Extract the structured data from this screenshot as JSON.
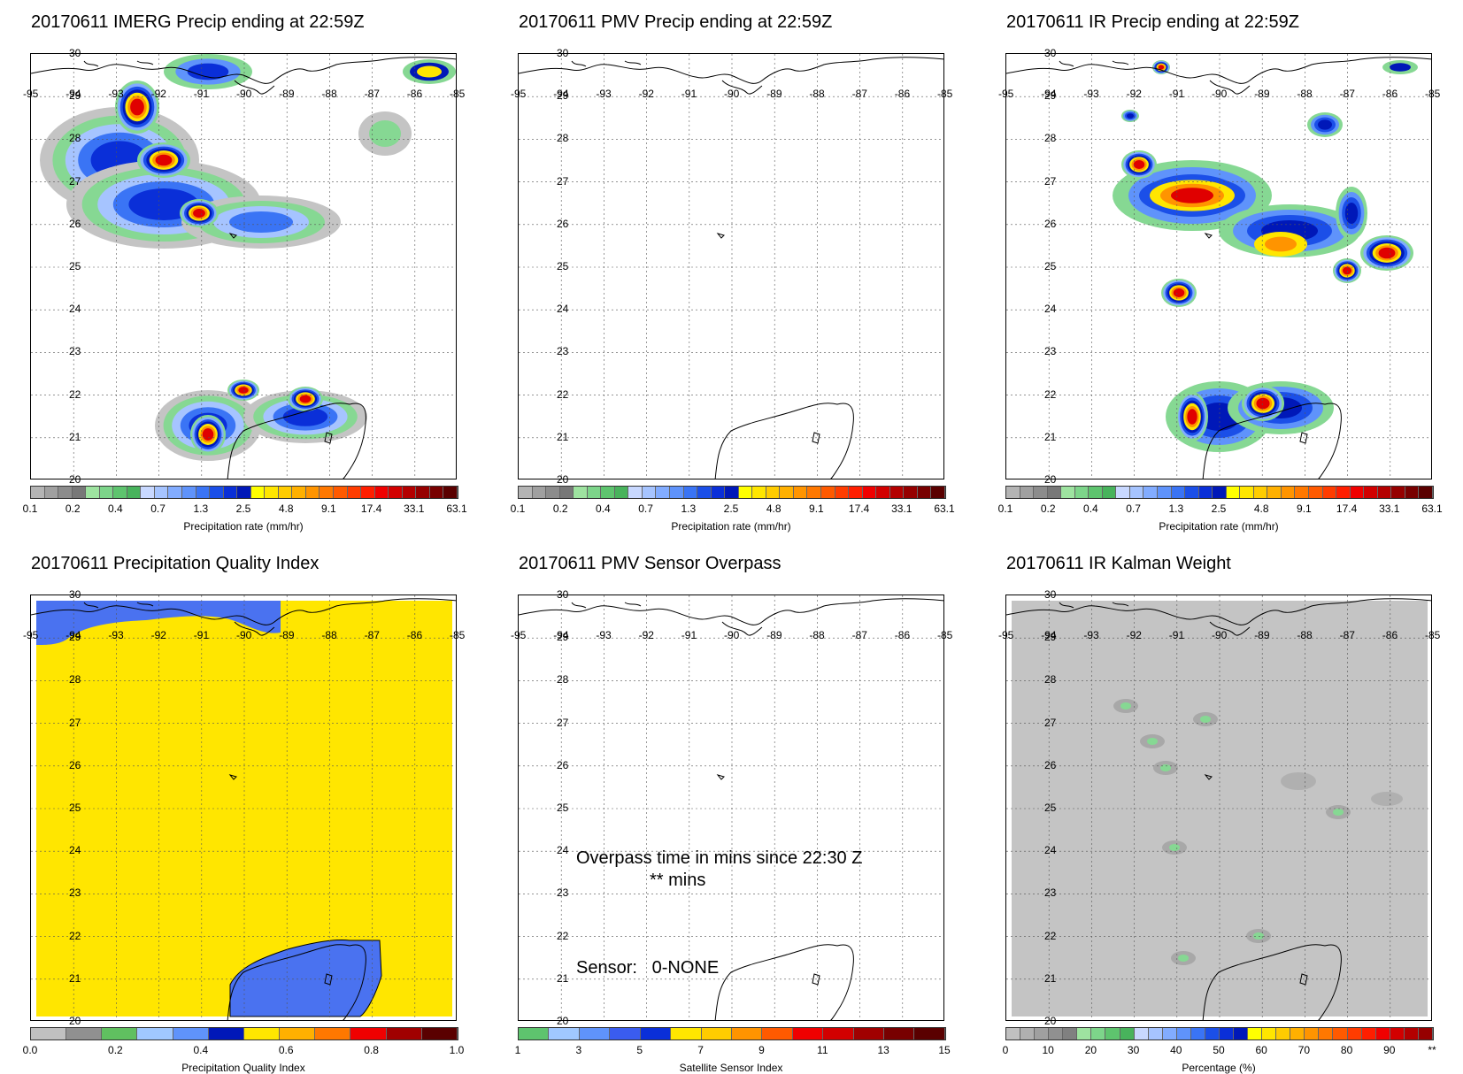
{
  "panels": [
    {
      "id": "imerg",
      "title": "20170611 IMERG Precip ending at 22:59Z",
      "colorbar_label": "Precipitation rate (mm/hr)",
      "ticks": [
        "0.1",
        "0.2",
        "0.4",
        "0.7",
        "1.3",
        "2.5",
        "4.8",
        "9.1",
        "17.4",
        "33.1",
        "63.1"
      ],
      "scale": "precip"
    },
    {
      "id": "pmv",
      "title": "20170611 PMV Precip ending at 22:59Z",
      "colorbar_label": "Precipitation rate (mm/hr)",
      "ticks": [
        "0.1",
        "0.2",
        "0.4",
        "0.7",
        "1.3",
        "2.5",
        "4.8",
        "9.1",
        "17.4",
        "33.1",
        "63.1"
      ],
      "scale": "precip"
    },
    {
      "id": "ir",
      "title": "20170611 IR Precip ending at 22:59Z",
      "colorbar_label": "Precipitation rate (mm/hr)",
      "ticks": [
        "0.1",
        "0.2",
        "0.4",
        "0.7",
        "1.3",
        "2.5",
        "4.8",
        "9.1",
        "17.4",
        "33.1",
        "63.1"
      ],
      "scale": "precip"
    },
    {
      "id": "pqi",
      "title": "20170611 Precipitation Quality Index",
      "colorbar_label": "Precipitation Quality Index",
      "ticks": [
        "0.0",
        "0.2",
        "0.4",
        "0.6",
        "0.8",
        "1.0"
      ],
      "scale": "quality"
    },
    {
      "id": "overpass",
      "title": "20170611 PMV Sensor Overpass",
      "colorbar_label": "Satellite Sensor Index",
      "ticks": [
        "1",
        "3",
        "5",
        "7",
        "9",
        "11",
        "13",
        "15"
      ],
      "scale": "sensor",
      "overpass_text": "Overpass time in mins since 22:30 Z",
      "overpass_value": "** mins",
      "sensor_text": "Sensor:   0-NONE"
    },
    {
      "id": "kalman",
      "title": "20170611 IR Kalman Weight",
      "colorbar_label": "Percentage (%)",
      "ticks": [
        "0",
        "10",
        "20",
        "30",
        "40",
        "50",
        "60",
        "70",
        "80",
        "90",
        "**"
      ],
      "scale": "percent"
    }
  ],
  "lat_labels": [
    "30",
    "29",
    "28",
    "27",
    "26",
    "25",
    "24",
    "23",
    "22",
    "21",
    "20"
  ],
  "lon_labels": [
    "-95",
    "-94",
    "-93",
    "-92",
    "-91",
    "-90",
    "-89",
    "-88",
    "-87",
    "-86",
    "-85"
  ],
  "colors": {
    "precip": [
      "#b4b4b4",
      "#a0a0a0",
      "#8c8c8c",
      "#787878",
      "#9ee3a0",
      "#7dd58a",
      "#5ec46e",
      "#48b35c",
      "#c8d8ff",
      "#a6c4ff",
      "#82acff",
      "#5f93fb",
      "#3a74f5",
      "#1b4fe8",
      "#0a2fd8",
      "#0018b8",
      "#ffff00",
      "#ffe600",
      "#ffcc00",
      "#ffb000",
      "#ff9400",
      "#ff7800",
      "#ff5a00",
      "#ff3c00",
      "#ff1e00",
      "#f00000",
      "#d20000",
      "#b40000",
      "#960000",
      "#780000",
      "#5a0000"
    ],
    "quality": [
      "#c0c0c0",
      "#909090",
      "#60c060",
      "#a0c8ff",
      "#5f93fb",
      "#0018b8",
      "#ffe600",
      "#ffb000",
      "#ff7800",
      "#f00000",
      "#a00000",
      "#5a0000"
    ],
    "sensor": [
      "#5ec46e",
      "#a0c8ff",
      "#5f93fb",
      "#3a5cf0",
      "#0a2fd8",
      "#ffe600",
      "#ffcc00",
      "#ff9400",
      "#ff5a00",
      "#f00000",
      "#d20000",
      "#a00000",
      "#780000",
      "#5a0000"
    ],
    "percent": [
      "#c0c0c0",
      "#b0b0b0",
      "#a0a0a0",
      "#909090",
      "#808080",
      "#9ee3a0",
      "#7dd58a",
      "#5ec46e",
      "#48b35c",
      "#c8d8ff",
      "#a6c4ff",
      "#82acff",
      "#5f93fb",
      "#3a74f5",
      "#1b4fe8",
      "#0a2fd8",
      "#0018b8",
      "#ffff00",
      "#ffe600",
      "#ffcc00",
      "#ffb000",
      "#ff9400",
      "#ff7800",
      "#ff5a00",
      "#ff3c00",
      "#ff1e00",
      "#f00000",
      "#d20000",
      "#b40000",
      "#960000"
    ]
  }
}
